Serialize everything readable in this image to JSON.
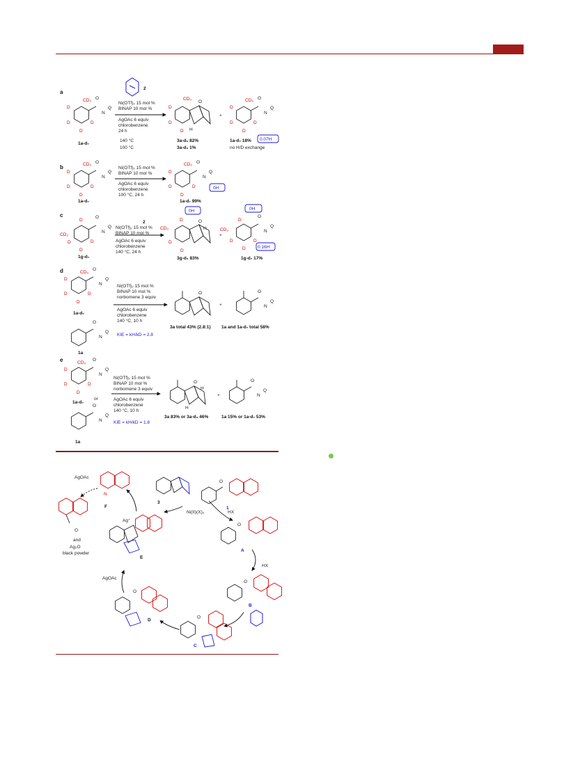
{
  "scheme": {
    "a": {
      "label": "a",
      "additive_number": "2",
      "reagent1": "Ni(OTf)₂ 15 mol %",
      "reagent2": "BINAP   10 mol %",
      "reagent3": "AgOAc 6 equiv",
      "reagent4": "chlorobenzene",
      "reagent5": "24 h",
      "temp1": "140 °C",
      "temp2": "100 °C",
      "start": "1a-d₇",
      "prod1_line1": "3a-d₆ 82%",
      "prod1_line2": "3a-d₆  1%",
      "prod2_line1": "1a-d₇ 18%",
      "prod2_line2": "no  H/D exchange",
      "box": "0.07H"
    },
    "b": {
      "label": "b",
      "reagent1": "Ni(OTf)₂ 15 mol %",
      "reagent2": "BINAP   10 mol %",
      "reagent3": "AgOAc 6 equiv",
      "reagent4": "chlorobenzene",
      "reagent5": "100 °C, 24 h",
      "start": "1a-d₇",
      "prod": "1a-d₇ 99%",
      "box": "0H"
    },
    "c": {
      "label": "c",
      "additive_number": "2",
      "reagent1": "Ni(OTf)₂ 15 mol %",
      "reagent2": "BINAP   10 mol %",
      "reagent3": "AgOAc 6 equiv",
      "reagent4": "chlorobenzene",
      "reagent5": "140 °C, 24 h",
      "start": "1g-d₇",
      "prod1": "3g-d₆ 83%",
      "prod2": "1g-d₇ 17%",
      "box1": "0H",
      "box2": "0H",
      "box3": "0.16H"
    },
    "d": {
      "label": "d",
      "reagent1": "Ni(OTf)₂ 15 mol %",
      "reagent2": "BINAP   10 mol %",
      "reagent3": "norbornene 3 equiv",
      "reagent4": "AgOAc 6 equiv",
      "reagent5": "chlorobenzene",
      "reagent6": "140 °C, 10 h",
      "kie": "KIE = kH/kD = 2.8",
      "start1": "1a-d₇",
      "start2": "1a",
      "prod1": "3a total 43% (2.8:1)",
      "prod2": "1a and 1a-d₇ total 58%"
    },
    "e": {
      "label": "e",
      "reagent1": "Ni(OTf)₂ 15 mol %",
      "reagent2": "BINAP 10 mol %",
      "reagent3": "norbornene 3 equiv",
      "reagent4": "AgOAc 6 equiv",
      "reagent5": "chlorobenzene",
      "reagent6": "140 °C, 10 h",
      "kie": "KIE = kH/kD = 1.8",
      "or": "or",
      "start1": "1a-d₇",
      "start2": "1a",
      "prod1": "3a 83% or 3a-d₆ 46%",
      "prod2": "1a 15% or 1a-d₇ 53%"
    },
    "atoms": {
      "cd3": "CD₃",
      "d": "D",
      "o": "O",
      "q": "Q",
      "n": "N",
      "h": "H",
      "plus": "+"
    }
  },
  "cycle": {
    "agoac_top": "AgOAc",
    "agoac_left": "AgOAc",
    "and": "and",
    "ag2o": "Ag₂O",
    "black_powder": "black powder",
    "catalyst": "Ni(II)(X)₂",
    "hx1": "HX",
    "hx2": "HX",
    "labels": [
      "A",
      "B",
      "C",
      "D",
      "E",
      "F",
      "1",
      "3"
    ],
    "ag_plus": "Ag⁺"
  },
  "colors": {
    "accent": "#a31b1b",
    "red": "#d40000",
    "blue": "#1a1ad6"
  }
}
